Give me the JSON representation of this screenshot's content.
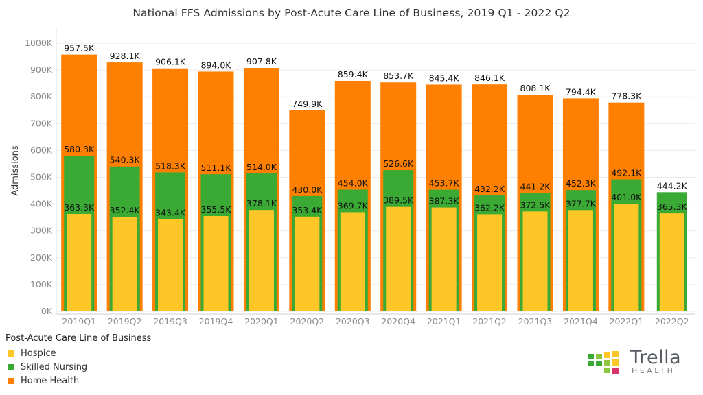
{
  "chart_data": {
    "type": "bar",
    "title": "National FFS Admissions by Post-Acute Care Line of Business, 2019 Q1 - 2022 Q2",
    "ylabel": "Admissions",
    "xlabel": "",
    "ylim": [
      0,
      1000000
    ],
    "yticks": [
      "0K",
      "100K",
      "200K",
      "300K",
      "400K",
      "500K",
      "600K",
      "700K",
      "800K",
      "900K",
      "1000K"
    ],
    "grid": true,
    "categories": [
      "2019Q1",
      "2019Q2",
      "2019Q3",
      "2019Q4",
      "2020Q1",
      "2020Q2",
      "2020Q3",
      "2020Q4",
      "2021Q1",
      "2021Q2",
      "2021Q3",
      "2021Q4",
      "2022Q1",
      "2022Q2"
    ],
    "series": [
      {
        "name": "Hospice",
        "color": "#ffc627",
        "values": [
          363300,
          352400,
          343400,
          355500,
          378100,
          353400,
          369700,
          389500,
          387300,
          362200,
          372500,
          377700,
          401000,
          365300
        ],
        "labels": [
          "363.3K",
          "352.4K",
          "343.4K",
          "355.5K",
          "378.1K",
          "353.4K",
          "369.7K",
          "389.5K",
          "387.3K",
          "362.2K",
          "372.5K",
          "377.7K",
          "401.0K",
          "365.3K"
        ]
      },
      {
        "name": "Skilled Nursing",
        "color": "#3aaa35",
        "values": [
          580300,
          540300,
          518300,
          511100,
          514000,
          430000,
          454000,
          526600,
          453700,
          432200,
          441200,
          452300,
          492100,
          444200
        ],
        "labels": [
          "580.3K",
          "540.3K",
          "518.3K",
          "511.1K",
          "514.0K",
          "430.0K",
          "454.0K",
          "526.6K",
          "453.7K",
          "432.2K",
          "441.2K",
          "452.3K",
          "492.1K",
          "444.2K"
        ]
      },
      {
        "name": "Home Health",
        "color": "#ff8000",
        "values": [
          957500,
          928100,
          906100,
          894000,
          907800,
          749900,
          859400,
          853700,
          845400,
          846100,
          808100,
          794400,
          778300,
          null
        ],
        "labels": [
          "957.5K",
          "928.1K",
          "906.1K",
          "894.0K",
          "907.8K",
          "749.9K",
          "859.4K",
          "853.7K",
          "845.4K",
          "846.1K",
          "808.1K",
          "794.4K",
          "778.3K",
          ""
        ]
      }
    ],
    "legend": {
      "title": "Post-Acute Care Line of Business",
      "placement": "bottom-left",
      "items": [
        "Hospice",
        "Skilled Nursing",
        "Home Health"
      ]
    }
  },
  "logo": {
    "word": "Trella",
    "sub": "HEALTH"
  }
}
